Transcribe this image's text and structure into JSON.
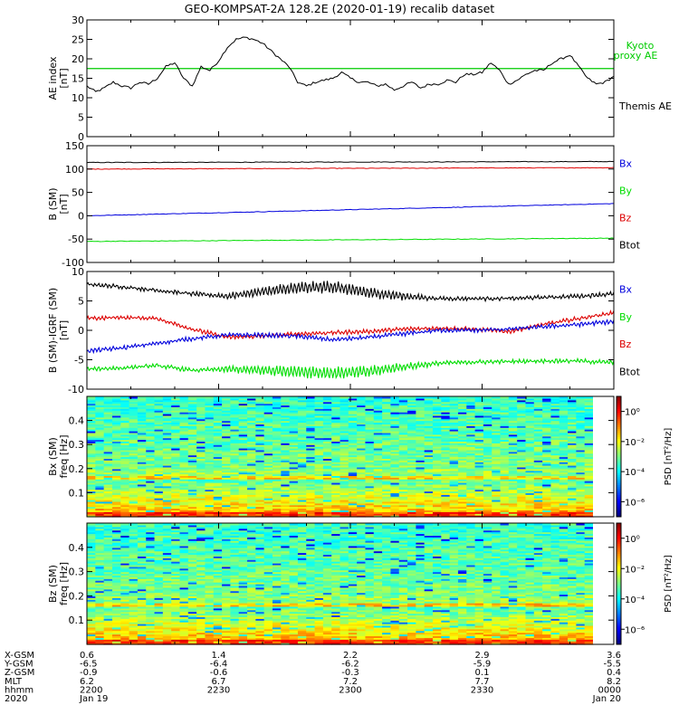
{
  "title": "GEO-KOMPSAT-2A 128.2E (2020-01-19) recalib dataset",
  "colors": {
    "black": "#000000",
    "blue": "#0000dd",
    "green": "#00dd00",
    "red": "#dd0000",
    "kyoto": "#00cc00"
  },
  "chart_data": [
    {
      "type": "line",
      "id": "ae",
      "ylabel": "AE index",
      "yunit": "[nT]",
      "ylim": [
        0,
        30
      ],
      "yticks": [
        "0",
        "5",
        "10",
        "15",
        "20",
        "25",
        "30"
      ],
      "legend": [
        {
          "label": "Kyoto",
          "color": "#00cc00"
        },
        {
          "label": "proxy AE",
          "color": "#00cc00"
        },
        {
          "label": "Themis AE",
          "color": "#000000"
        }
      ],
      "kyoto_proxy_level": 17.5,
      "x": [
        0,
        1,
        2,
        3,
        4,
        5,
        6,
        7,
        8,
        9,
        10,
        11,
        12,
        13,
        14,
        15,
        16,
        17,
        18,
        19,
        20,
        21,
        22,
        23,
        24,
        25,
        26,
        27,
        28,
        29,
        30,
        31,
        32,
        33,
        34,
        35,
        36,
        37,
        38,
        39,
        40,
        41,
        42,
        43,
        44,
        45,
        46,
        47,
        48,
        49,
        50,
        51,
        52,
        53,
        54,
        55,
        56,
        57,
        58,
        59,
        60
      ],
      "series": [
        {
          "name": "Themis AE",
          "color": "#000000",
          "values": [
            13,
            11.5,
            12.5,
            14,
            13,
            12.5,
            14,
            13.5,
            15,
            18,
            19,
            15,
            13,
            18,
            17,
            19.5,
            23,
            25,
            25.5,
            25,
            24,
            22,
            20,
            18,
            14,
            13,
            14,
            14.5,
            15,
            16.5,
            15,
            14,
            14,
            13,
            13.5,
            12,
            13,
            14,
            12.5,
            13.5,
            13.5,
            14.5,
            14,
            16,
            16,
            16.5,
            19,
            17,
            13.5,
            14.5,
            16,
            17,
            17,
            19,
            20,
            21,
            18,
            15,
            13.5,
            14,
            15.5
          ]
        }
      ]
    },
    {
      "type": "line",
      "id": "bsm",
      "ylabel": "B (SM)",
      "yunit": "[nT]",
      "ylim": [
        -100,
        150
      ],
      "yticks": [
        "-100",
        "-50",
        "0",
        "50",
        "100",
        "150"
      ],
      "legend": [
        {
          "label": "Bx",
          "color": "#0000dd"
        },
        {
          "label": "By",
          "color": "#00dd00"
        },
        {
          "label": "Bz",
          "color": "#dd0000"
        },
        {
          "label": "Btot",
          "color": "#000000"
        }
      ],
      "series": [
        {
          "name": "Btot",
          "color": "#000000",
          "start": 114,
          "end": 116
        },
        {
          "name": "Bz",
          "color": "#dd0000",
          "start": 100,
          "end": 103
        },
        {
          "name": "Bx",
          "color": "#0000dd",
          "start": 0,
          "end": 26
        },
        {
          "name": "By",
          "color": "#00dd00",
          "start": -55,
          "end": -48
        }
      ]
    },
    {
      "type": "line",
      "id": "bdiff",
      "ylabel": "B (SM)-IGRF (SM)",
      "yunit": "[nT]",
      "ylim": [
        -10,
        10
      ],
      "yticks": [
        "-10",
        "-5",
        "0",
        "5",
        "10"
      ],
      "legend": [
        {
          "label": "Bx",
          "color": "#0000dd"
        },
        {
          "label": "By",
          "color": "#00dd00"
        },
        {
          "label": "Bz",
          "color": "#dd0000"
        },
        {
          "label": "Btot",
          "color": "#000000"
        }
      ],
      "x": [
        0,
        4,
        8,
        12,
        16,
        20,
        24,
        28,
        32,
        36,
        40,
        44,
        48,
        52,
        56,
        60
      ],
      "series": [
        {
          "name": "Btot",
          "color": "#000000",
          "values": [
            7.8,
            7.4,
            6.8,
            6.2,
            5.8,
            6.6,
            7.2,
            7.4,
            6.4,
            5.8,
            5.4,
            5.4,
            5.4,
            5.6,
            5.8,
            6.2
          ]
        },
        {
          "name": "Bz",
          "color": "#dd0000",
          "values": [
            2.0,
            2.2,
            2.0,
            0.2,
            -1.2,
            -1.0,
            -0.6,
            -0.4,
            -0.2,
            0.2,
            0.4,
            0.2,
            -0.2,
            1.0,
            2.0,
            3.0
          ]
        },
        {
          "name": "Bx",
          "color": "#0000dd",
          "values": [
            -3.5,
            -3.0,
            -2.2,
            -1.4,
            -0.8,
            -0.8,
            -1.0,
            -1.6,
            -1.2,
            -0.6,
            0.0,
            0.0,
            0.2,
            0.6,
            1.0,
            1.5
          ]
        },
        {
          "name": "By",
          "color": "#00dd00",
          "values": [
            -6.6,
            -6.4,
            -6.0,
            -6.8,
            -6.6,
            -6.8,
            -7.0,
            -7.3,
            -7.0,
            -6.2,
            -5.6,
            -5.4,
            -5.3,
            -5.2,
            -5.2,
            -5.5
          ]
        }
      ]
    },
    {
      "type": "heatmap",
      "id": "bxspec",
      "ylabel": "Bx (SM)",
      "yunit": "freq [Hz]",
      "ylim": [
        0,
        0.5
      ],
      "yticks": [
        "0.1",
        "0.2",
        "0.3",
        "0.4"
      ],
      "colorbar_label": "PSD [nT²/Hz]",
      "colorbar_ticks": [
        "10⁰",
        "10⁻²",
        "10⁻⁴",
        "10⁻⁶"
      ],
      "colorbar_values": [
        0,
        -2,
        -4,
        -6
      ],
      "colorbar_range": [
        -7,
        1
      ]
    },
    {
      "type": "heatmap",
      "id": "bzspec",
      "ylabel": "Bz (SM)",
      "yunit": "freq [Hz]",
      "ylim": [
        0,
        0.5
      ],
      "yticks": [
        "0.1",
        "0.2",
        "0.3",
        "0.4"
      ],
      "colorbar_label": "PSD [nT²/Hz]",
      "colorbar_ticks": [
        "10⁰",
        "10⁻²",
        "10⁻⁴",
        "10⁻⁶"
      ],
      "colorbar_values": [
        0,
        -2,
        -4,
        -6
      ],
      "colorbar_range": [
        -7,
        1
      ]
    }
  ],
  "xaxis": {
    "tick_positions_min": [
      0,
      30,
      60,
      90,
      120
    ],
    "range_min": [
      0,
      120
    ],
    "rows": [
      {
        "label": "X-GSM",
        "values": [
          "0.6",
          "1.4",
          "2.2",
          "2.9",
          "3.6"
        ]
      },
      {
        "label": "Y-GSM",
        "values": [
          "-6.5",
          "-6.4",
          "-6.2",
          "-5.9",
          "-5.5"
        ]
      },
      {
        "label": "Z-GSM",
        "values": [
          "-0.9",
          "-0.6",
          "-0.3",
          "0.1",
          "0.4"
        ]
      },
      {
        "label": "MLT",
        "values": [
          "6.2",
          "6.7",
          "7.2",
          "7.7",
          "8.2"
        ]
      },
      {
        "label": "hhmm",
        "values": [
          "2200",
          "2230",
          "2300",
          "2330",
          "0000"
        ]
      },
      {
        "label": "2020",
        "values": [
          "Jan 19",
          "",
          "",
          "",
          "Jan 20"
        ]
      }
    ]
  }
}
